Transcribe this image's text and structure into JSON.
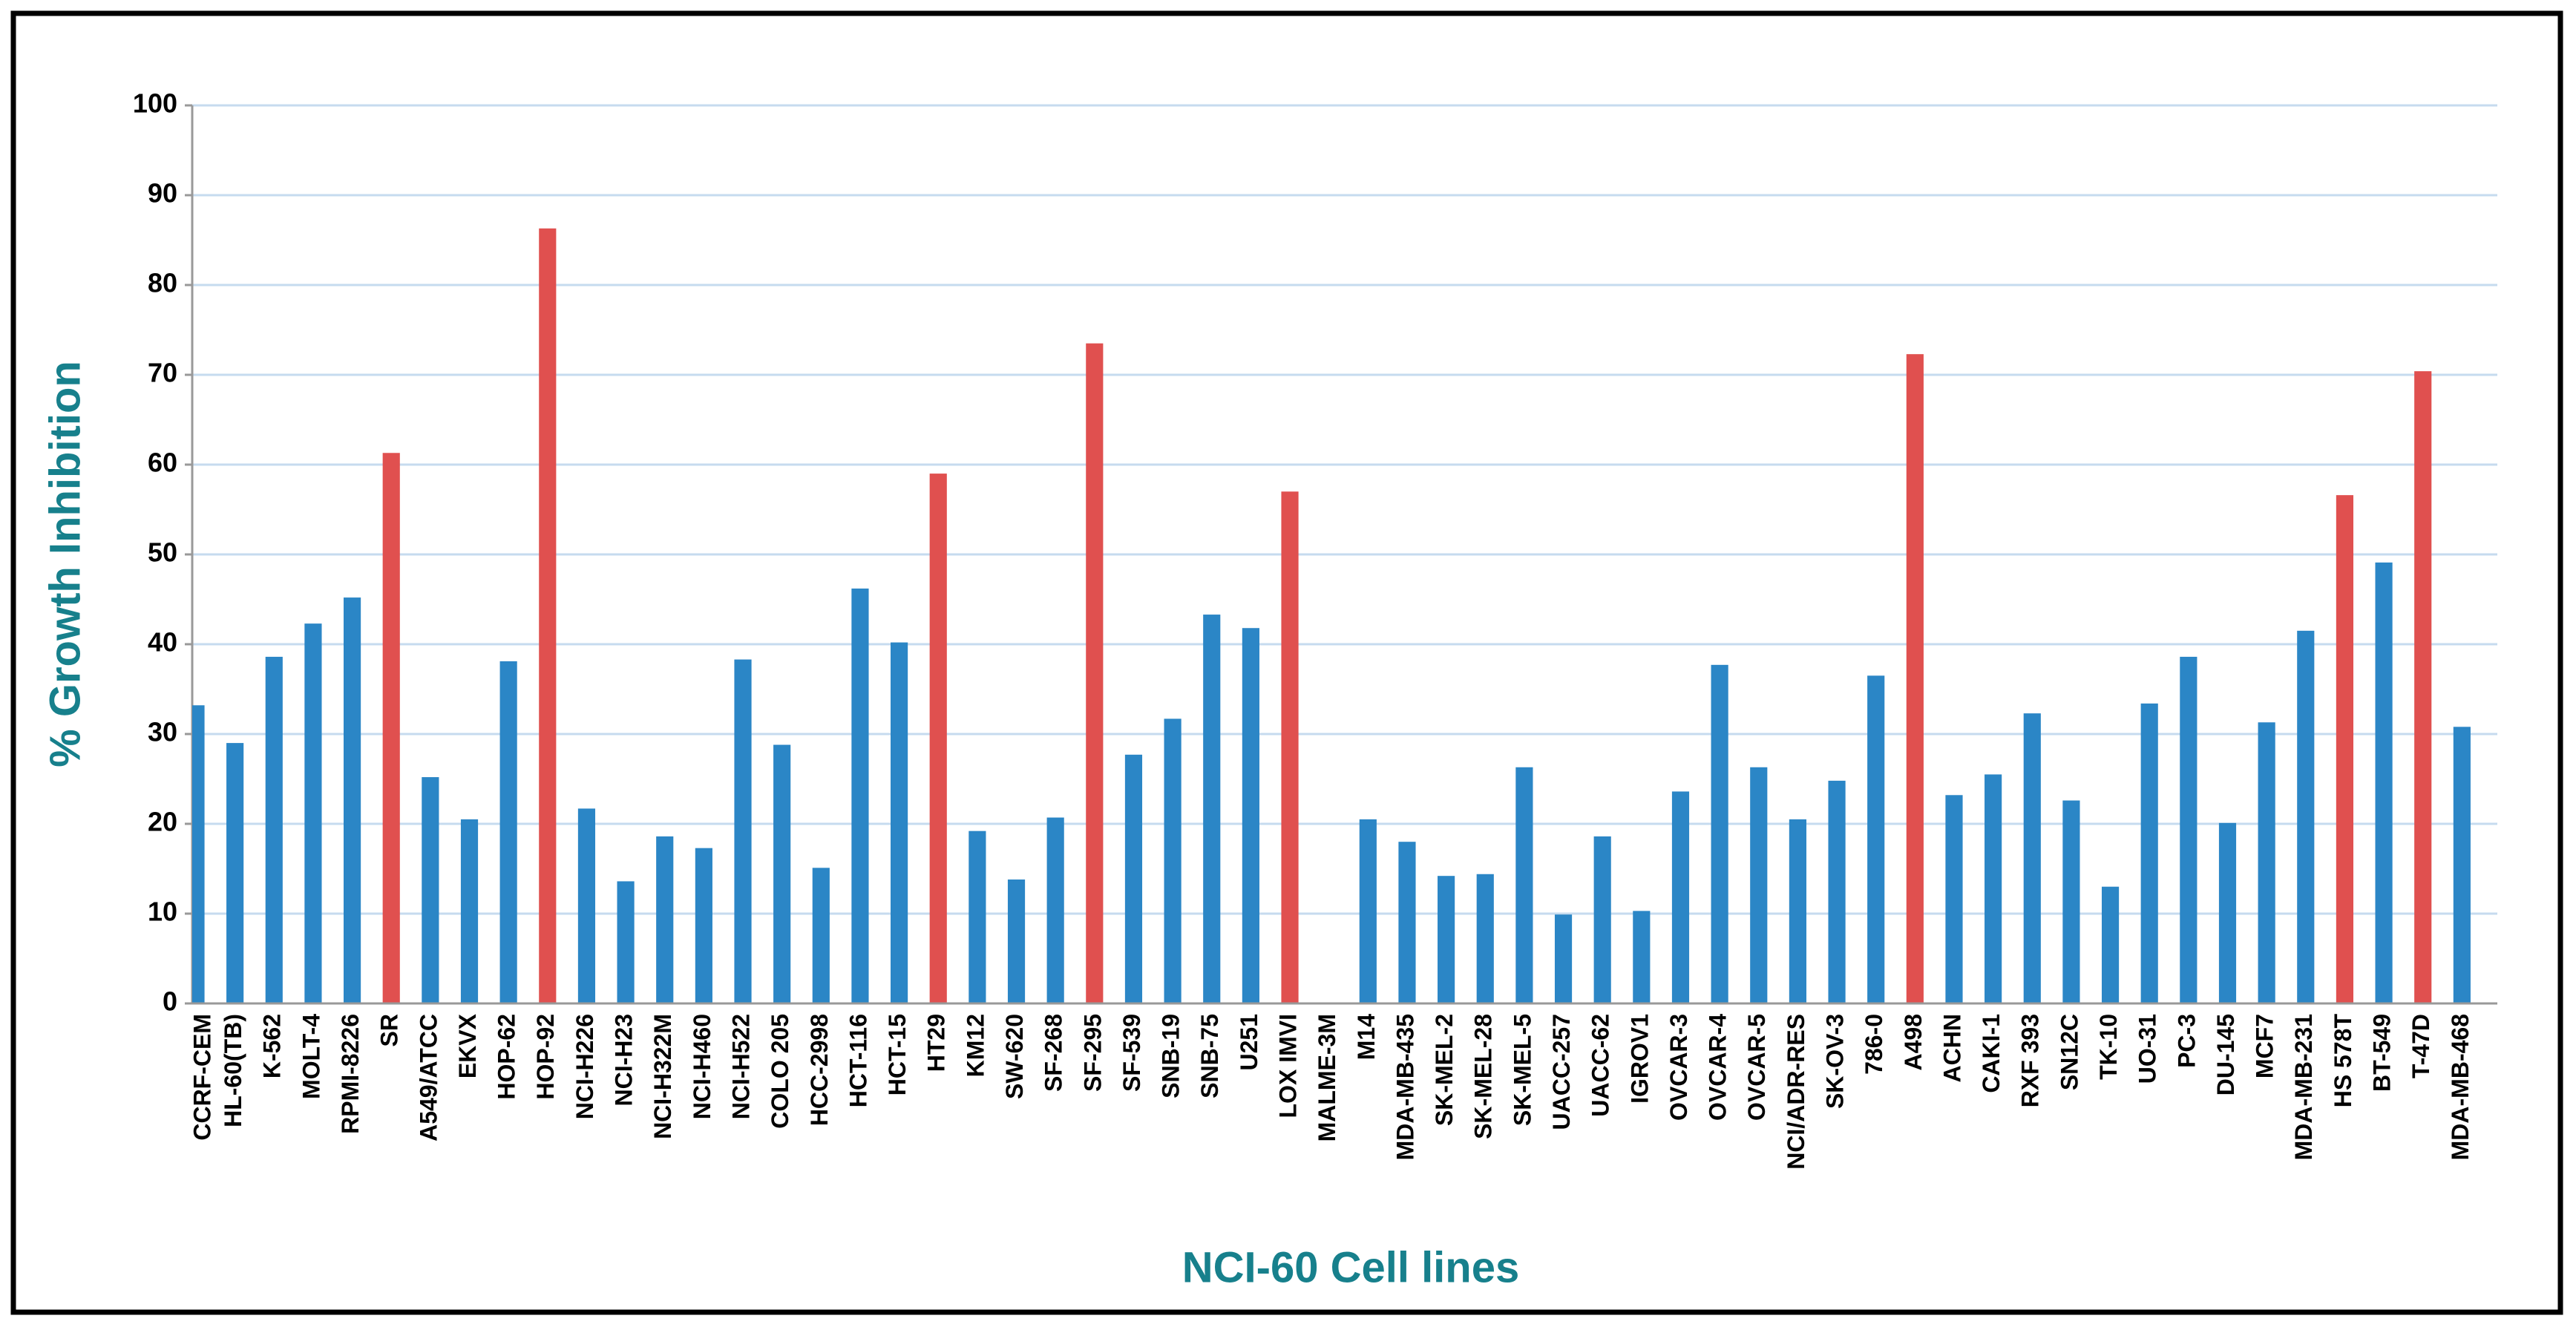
{
  "chart_data": {
    "type": "bar",
    "x_label": "NCI-60 Cell lines",
    "y_label": "% Growth Inhibition",
    "categories": [
      "CCRF-CEM",
      "HL-60(TB)",
      "K-562",
      "MOLT-4",
      "RPMI-8226",
      "SR",
      "A549/ATCC",
      "EKVX",
      "HOP-62",
      "HOP-92",
      "NCI-H226",
      "NCI-H23",
      "NCI-H322M",
      "NCI-H460",
      "NCI-H522",
      "COLO 205",
      "HCC-2998",
      "HCT-116",
      "HCT-15",
      "HT29",
      "KM12",
      "SW-620",
      "SF-268",
      "SF-295",
      "SF-539",
      "SNB-19",
      "SNB-75",
      "U251",
      "LOX IMVI",
      "MALME-3M",
      "M14",
      "MDA-MB-435",
      "SK-MEL-2",
      "SK-MEL-28",
      "SK-MEL-5",
      "UACC-257",
      "UACC-62",
      "IGROV1",
      "OVCAR-3",
      "OVCAR-4",
      "OVCAR-5",
      "NCI/ADR-RES",
      "SK-OV-3",
      "786-0",
      "A498",
      "ACHN",
      "CAKI-1",
      "RXF 393",
      "SN12C",
      "TK-10",
      "UO-31",
      "PC-3",
      "DU-145",
      "MCF7",
      "MDA-MB-231",
      "HS 578T",
      "BT-549",
      "T-47D",
      "MDA-MB-468"
    ],
    "values": [
      33.2,
      29,
      38.6,
      42.3,
      45.2,
      61.3,
      25.2,
      20.5,
      38.1,
      86.3,
      21.7,
      13.6,
      18.6,
      17.3,
      38.3,
      28.8,
      15.1,
      46.2,
      40.2,
      59,
      19.2,
      13.8,
      20.7,
      73.5,
      27.7,
      31.7,
      43.3,
      41.8,
      57,
      0,
      20.5,
      18,
      14.2,
      14.4,
      26.3,
      9.9,
      18.6,
      10.3,
      23.6,
      37.7,
      26.3,
      20.5,
      24.8,
      36.5,
      72.3,
      23.2,
      25.5,
      32.3,
      22.6,
      13,
      33.4,
      38.6,
      20.1,
      31.3,
      41.5,
      56.6,
      49.1,
      70.4,
      30.8
    ],
    "colors": [
      "#2b86c6",
      "#2b86c6",
      "#2b86c6",
      "#2b86c6",
      "#2b86c6",
      "#e0504f",
      "#2b86c6",
      "#2b86c6",
      "#2b86c6",
      "#e0504f",
      "#2b86c6",
      "#2b86c6",
      "#2b86c6",
      "#2b86c6",
      "#2b86c6",
      "#2b86c6",
      "#2b86c6",
      "#2b86c6",
      "#2b86c6",
      "#e0504f",
      "#2b86c6",
      "#2b86c6",
      "#2b86c6",
      "#e0504f",
      "#2b86c6",
      "#2b86c6",
      "#2b86c6",
      "#2b86c6",
      "#e0504f",
      "#2b86c6",
      "#2b86c6",
      "#2b86c6",
      "#2b86c6",
      "#2b86c6",
      "#2b86c6",
      "#2b86c6",
      "#2b86c6",
      "#2b86c6",
      "#2b86c6",
      "#2b86c6",
      "#2b86c6",
      "#2b86c6",
      "#2b86c6",
      "#2b86c6",
      "#e0504f",
      "#2b86c6",
      "#2b86c6",
      "#2b86c6",
      "#2b86c6",
      "#2b86c6",
      "#2b86c6",
      "#2b86c6",
      "#2b86c6",
      "#2b86c6",
      "#2b86c6",
      "#e0504f",
      "#2b86c6",
      "#e0504f",
      "#2b86c6"
    ],
    "ylim": [
      0,
      100
    ],
    "yticks": [
      0,
      10,
      20,
      30,
      40,
      50,
      60,
      70,
      80,
      90,
      100
    ],
    "grid": true
  }
}
